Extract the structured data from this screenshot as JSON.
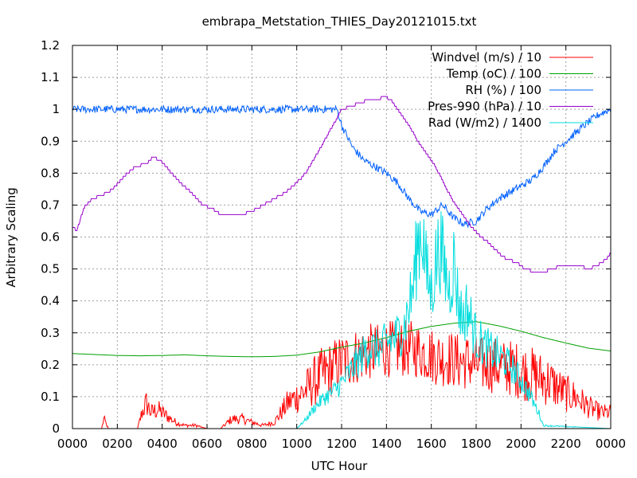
{
  "chart_data": {
    "type": "line",
    "title": "embrapa_Metstation_THIES_Day20121015.txt",
    "xlabel": "UTC Hour",
    "ylabel": "Arbitrary Scaling",
    "xlim": [
      0,
      24
    ],
    "ylim": [
      0,
      1.2
    ],
    "xtick_labels": [
      "0000",
      "0200",
      "0400",
      "0600",
      "0800",
      "1000",
      "1200",
      "1400",
      "1600",
      "1800",
      "2000",
      "2200",
      "0000"
    ],
    "ytick_labels": [
      "0",
      "0.1",
      "0.2",
      "0.3",
      "0.4",
      "0.5",
      "0.6",
      "0.7",
      "0.8",
      "0.9",
      "1",
      "1.1",
      "1.2"
    ],
    "grid": true,
    "legend_position": "top-right",
    "series": [
      {
        "name": "Windvel (m/s) / 10",
        "color": "#ff0000",
        "style": "noisy",
        "noise": 0.09,
        "x": [
          0,
          1.3,
          1.4,
          1.6,
          1.8,
          2.9,
          3.1,
          3.3,
          3.5,
          3.8,
          4.2,
          4.6,
          5.0,
          5.5,
          6.0,
          6.6,
          7.1,
          7.6,
          8.0,
          8.5,
          9.0,
          9.3,
          9.6,
          10.0,
          10.4,
          10.8,
          11.2,
          11.6,
          12.0,
          12.4,
          12.8,
          13.2,
          13.6,
          14.0,
          14.4,
          14.8,
          15.2,
          15.6,
          16.0,
          16.4,
          16.8,
          17.2,
          17.6,
          18.0,
          18.4,
          18.8,
          19.2,
          19.6,
          20.0,
          20.4,
          20.8,
          21.2,
          21.6,
          22.0,
          22.4,
          22.8,
          23.2,
          23.6,
          24.0
        ],
        "y": [
          0,
          0,
          0.03,
          0,
          0,
          0,
          0.05,
          0.08,
          0.05,
          0.06,
          0.04,
          0.02,
          0.01,
          0.01,
          0.0,
          0.0,
          0.03,
          0.03,
          0.02,
          0.01,
          0.02,
          0.05,
          0.08,
          0.1,
          0.12,
          0.15,
          0.17,
          0.19,
          0.21,
          0.22,
          0.23,
          0.24,
          0.24,
          0.25,
          0.25,
          0.25,
          0.25,
          0.24,
          0.23,
          0.22,
          0.22,
          0.21,
          0.21,
          0.2,
          0.2,
          0.2,
          0.19,
          0.19,
          0.18,
          0.17,
          0.16,
          0.15,
          0.13,
          0.11,
          0.1,
          0.08,
          0.06,
          0.05,
          0.05
        ]
      },
      {
        "name": "Temp (oC) / 100",
        "color": "#00a000",
        "style": "smooth",
        "x": [
          0,
          1,
          2,
          3,
          4,
          5,
          6,
          7,
          8,
          9,
          10,
          11,
          12,
          13,
          14,
          15,
          16,
          17,
          18,
          19,
          20,
          21,
          22,
          23,
          24
        ],
        "y": [
          0.235,
          0.232,
          0.229,
          0.228,
          0.229,
          0.231,
          0.228,
          0.226,
          0.225,
          0.226,
          0.23,
          0.24,
          0.255,
          0.268,
          0.285,
          0.305,
          0.32,
          0.33,
          0.335,
          0.322,
          0.305,
          0.285,
          0.268,
          0.252,
          0.243
        ]
      },
      {
        "name": "RH (%) / 100",
        "color": "#0060ff",
        "style": "noisy",
        "noise": 0.012,
        "x": [
          0,
          11.8,
          12.0,
          12.5,
          13.0,
          13.5,
          14.0,
          14.5,
          15.0,
          15.5,
          16.0,
          16.5,
          17.0,
          17.5,
          18.0,
          18.5,
          19.0,
          19.5,
          20.0,
          20.5,
          21.0,
          21.5,
          22.0,
          22.5,
          23.0,
          23.5,
          24.0
        ],
        "y": [
          1.0,
          1.0,
          0.95,
          0.88,
          0.84,
          0.82,
          0.8,
          0.77,
          0.72,
          0.68,
          0.67,
          0.7,
          0.66,
          0.64,
          0.65,
          0.69,
          0.72,
          0.74,
          0.76,
          0.78,
          0.82,
          0.87,
          0.9,
          0.93,
          0.96,
          0.985,
          1.0
        ]
      },
      {
        "name": "Pres-990 (hPa) / 10",
        "color": "#9900cc",
        "style": "stepped",
        "x": [
          0,
          0.2,
          0.5,
          0.9,
          1.3,
          1.8,
          2.3,
          2.8,
          3.3,
          3.6,
          3.9,
          4.3,
          4.8,
          5.3,
          5.8,
          6.2,
          6.6,
          7.0,
          7.5,
          8.0,
          8.5,
          9.0,
          9.5,
          10.0,
          10.4,
          10.9,
          11.3,
          11.7,
          12.0,
          12.4,
          12.8,
          13.2,
          13.6,
          13.9,
          14.2,
          14.6,
          15.0,
          15.4,
          15.8,
          16.2,
          16.6,
          17.0,
          17.4,
          17.8,
          18.2,
          18.6,
          19.0,
          19.4,
          19.8,
          20.2,
          20.6,
          21.0,
          21.4,
          21.8,
          22.2,
          22.6,
          23.0,
          23.4,
          23.8,
          24.0
        ],
        "y": [
          0.63,
          0.62,
          0.69,
          0.72,
          0.73,
          0.75,
          0.79,
          0.82,
          0.83,
          0.85,
          0.84,
          0.81,
          0.77,
          0.74,
          0.7,
          0.69,
          0.67,
          0.67,
          0.67,
          0.68,
          0.7,
          0.72,
          0.74,
          0.77,
          0.8,
          0.86,
          0.91,
          0.96,
          1.0,
          1.01,
          1.02,
          1.03,
          1.03,
          1.04,
          1.03,
          0.99,
          0.95,
          0.9,
          0.86,
          0.82,
          0.76,
          0.71,
          0.67,
          0.63,
          0.6,
          0.58,
          0.55,
          0.53,
          0.52,
          0.5,
          0.49,
          0.49,
          0.5,
          0.51,
          0.51,
          0.51,
          0.5,
          0.51,
          0.53,
          0.55
        ]
      },
      {
        "name": "Rad (W/m2) / 1400",
        "color": "#00dddd",
        "style": "spiky",
        "x": [
          0,
          10.0,
          10.4,
          10.8,
          11.2,
          11.6,
          12.0,
          12.4,
          12.8,
          13.2,
          13.6,
          14.0,
          14.4,
          14.8,
          15.0,
          15.2,
          15.4,
          15.6,
          15.8,
          16.0,
          16.2,
          16.4,
          16.6,
          16.8,
          17.0,
          17.2,
          17.4,
          17.6,
          17.8,
          18.0,
          18.4,
          18.8,
          19.2,
          19.6,
          20.0,
          20.4,
          20.8,
          21.0,
          24.0
        ],
        "y": [
          0,
          0,
          0.03,
          0.07,
          0.1,
          0.12,
          0.15,
          0.19,
          0.23,
          0.27,
          0.26,
          0.28,
          0.3,
          0.34,
          0.4,
          0.47,
          0.62,
          0.66,
          0.5,
          0.45,
          0.55,
          0.6,
          0.52,
          0.46,
          0.55,
          0.42,
          0.36,
          0.4,
          0.35,
          0.3,
          0.27,
          0.25,
          0.23,
          0.2,
          0.16,
          0.11,
          0.05,
          0.01,
          0
        ]
      }
    ]
  }
}
